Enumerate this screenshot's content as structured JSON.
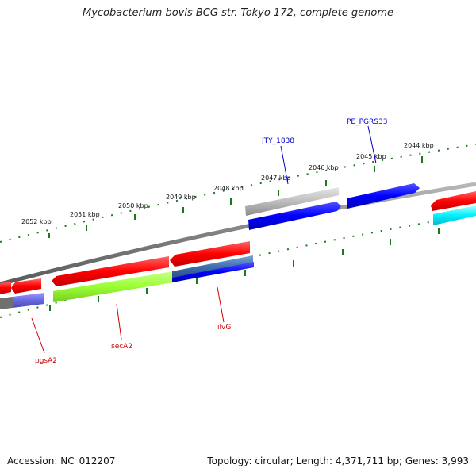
{
  "title": "Mycobacterium bovis BCG str. Tokyo 172, complete genome",
  "footer": {
    "accession": "Accession: NC_012207",
    "topology": "Topology: circular; Length: 4,371,711 bp; Genes: 3,993"
  },
  "ticks": {
    "outer_labels": [
      "2052 kbp",
      "2051 kbp",
      "2050 kbp",
      "2049 kbp",
      "2048 kbp",
      "2047 kbp",
      "2046 kbp",
      "2045 kbp",
      "2044 kbp"
    ]
  },
  "colors": {
    "forward_gene": "#ff0000",
    "reverse_gene": "#0000ff",
    "pseudo_gene": "#b0b0b0",
    "rna_like": "#99ff33",
    "cyan_feature": "#00e5ff",
    "tick_color": "#1a7a1a",
    "backbone": "#808080"
  },
  "genes": {
    "top": [
      {
        "label": "JTY_1838",
        "color": "#0000cc"
      },
      {
        "label": "PE_PGRS33",
        "color": "#0000cc"
      }
    ],
    "bottom": [
      {
        "label": "pgsA2",
        "color": "#cc0000"
      },
      {
        "label": "secA2",
        "color": "#cc0000"
      },
      {
        "label": "ilvG",
        "color": "#cc0000"
      }
    ]
  }
}
